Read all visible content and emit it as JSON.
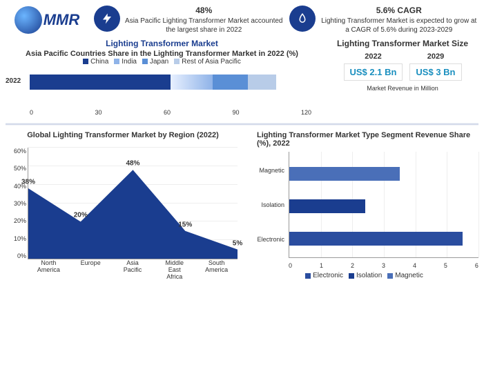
{
  "logo": {
    "text": "MMR"
  },
  "top_stats": {
    "share": {
      "icon": "bolt-icon",
      "value": "48%",
      "desc": "Asia Pacific Lighting Transformer Market accounted the largest share in 2022"
    },
    "cagr": {
      "icon": "flame-icon",
      "value": "5.6% CAGR",
      "desc": "Lighting Transformer Market is expected to grow at a CAGR of 5.6% during 2023-2029"
    }
  },
  "stacked": {
    "main_title": "Lighting Transformer Market",
    "title": "Asia Pacific Countries Share in the Lighting Transformer Market in 2022 (%)",
    "year_label": "2022",
    "x_ticks": [
      "0",
      "30",
      "60",
      "90",
      "120"
    ],
    "x_max": 120,
    "series": [
      {
        "name": "China",
        "value": 60,
        "color": "#1a3d8f"
      },
      {
        "name": "India",
        "value": 18,
        "color": "#8fb3e8",
        "gradient": true
      },
      {
        "name": "Japan",
        "value": 15,
        "color": "#5a8fd6"
      },
      {
        "name": "Rest of Asia Pacific",
        "value": 12,
        "color": "#b8cce8"
      }
    ]
  },
  "market_size": {
    "title": "Lighting Transformer Market Size",
    "cols": [
      {
        "year": "2022",
        "value": "US$ 2.1 Bn"
      },
      {
        "year": "2029",
        "value": "US$ 3 Bn"
      }
    ],
    "note": "Market Revenue in Million"
  },
  "area": {
    "title": "Global Lighting Transformer Market by Region (2022)",
    "y_ticks": [
      "60%",
      "50%",
      "40%",
      "30%",
      "20%",
      "10%",
      "0%"
    ],
    "y_max": 60,
    "categories": [
      "North\nAmerica",
      "Europe",
      "Asia\nPacific",
      "Middle\nEast\nAfrica",
      "South\nAmerica"
    ],
    "values": [
      38,
      20,
      48,
      15,
      5
    ],
    "fill_color": "#1a3d8f",
    "label_fontsize": 10
  },
  "hbar": {
    "title": "Lighting Transformer Market Type Segment Revenue Share (%), 2022",
    "x_ticks": [
      "0",
      "1",
      "2",
      "3",
      "4",
      "5",
      "6"
    ],
    "x_max": 6,
    "bars": [
      {
        "name": "Magnetic",
        "value": 3.5,
        "color": "#4a6fb8"
      },
      {
        "name": "Isolation",
        "value": 2.4,
        "color": "#1a3d8f"
      },
      {
        "name": "Electronic",
        "value": 5.5,
        "color": "#2a4d9f"
      }
    ],
    "legend": [
      {
        "name": "Electronic",
        "color": "#2a4d9f"
      },
      {
        "name": "Isolation",
        "color": "#1a3d8f"
      },
      {
        "name": "Magnetic",
        "color": "#4a6fb8"
      }
    ]
  }
}
